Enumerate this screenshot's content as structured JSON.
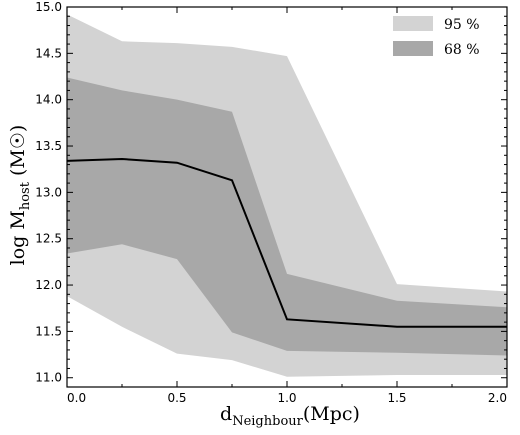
{
  "chart_data": {
    "type": "area",
    "x": [
      0.0,
      0.25,
      0.5,
      0.75,
      1.0,
      1.5,
      2.0
    ],
    "median": [
      13.34,
      13.36,
      13.32,
      13.13,
      11.63,
      11.55,
      11.55
    ],
    "band95": {
      "name": "95 %",
      "color": "#d3d3d3",
      "lower": [
        11.88,
        11.55,
        11.26,
        11.19,
        11.01,
        11.03,
        11.03
      ],
      "upper": [
        14.92,
        14.63,
        14.61,
        14.57,
        14.47,
        12.01,
        11.93
      ]
    },
    "band68": {
      "name": "68 %",
      "color": "#a8a8a8",
      "lower": [
        12.34,
        12.44,
        12.28,
        11.49,
        11.29,
        11.27,
        11.24
      ],
      "upper": [
        14.24,
        14.1,
        14.0,
        13.87,
        12.12,
        11.83,
        11.76
      ]
    },
    "xlabel_main": "d",
    "xlabel_sub": "Neighbour",
    "xlabel_unit": "(Mpc)",
    "ylabel_main": "log M",
    "ylabel_sub": "host",
    "ylabel_unit": " (M",
    "ylabel_sun": "☉",
    "ylabel_close": ")",
    "xlim": [
      0.0,
      2.0
    ],
    "ylim": [
      10.9,
      15.0
    ],
    "xticks": [
      "0.0",
      "0.5",
      "1.0",
      "1.5",
      "2.0"
    ],
    "yticks": [
      "11.0",
      "11.5",
      "12.0",
      "12.5",
      "13.0",
      "13.5",
      "14.0",
      "14.5",
      "15.0"
    ],
    "legend_position": "top-right",
    "grid": false
  }
}
